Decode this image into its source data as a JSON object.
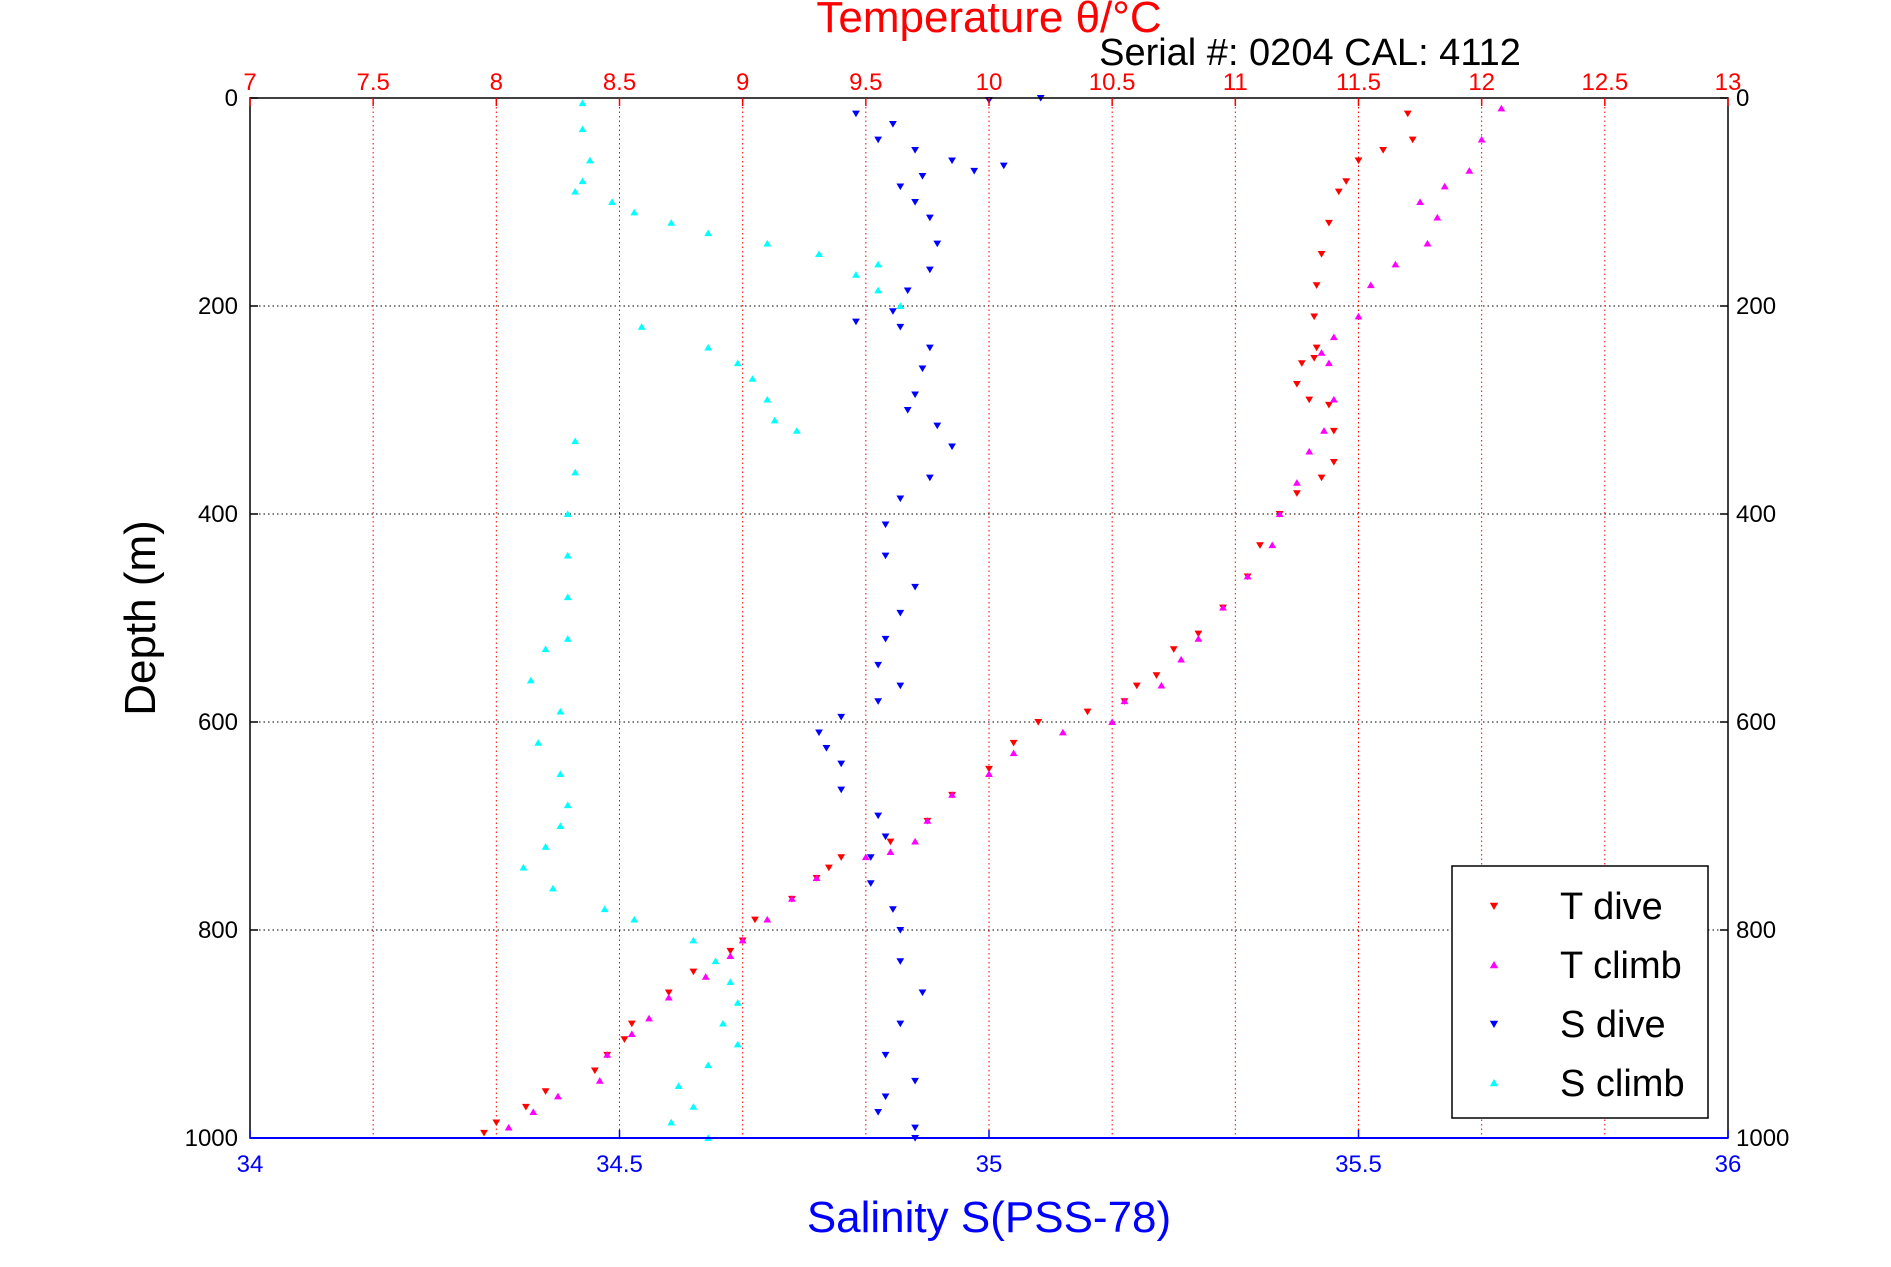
{
  "chart_data": {
    "type": "scatter",
    "title": "Temperature θ/°C",
    "subtitle": "Serial #: 0204  CAL: 4112",
    "ylabel": "Depth (m)",
    "xlabel": "Salinity S(PSS-78)",
    "y_axis": {
      "range": [
        0,
        1000
      ],
      "reversed": true,
      "ticks": [
        0,
        200,
        400,
        600,
        800,
        1000
      ],
      "tick_labels": [
        "0",
        "200",
        "400",
        "600",
        "800",
        "1000"
      ]
    },
    "x_bottom": {
      "label": "Salinity S(PSS-78)",
      "range": [
        34,
        36
      ],
      "ticks": [
        34,
        34.5,
        35,
        35.5,
        36
      ],
      "tick_labels": [
        "34",
        "34.5",
        "35",
        "35.5",
        "36"
      ],
      "color": "#0000ff"
    },
    "x_top": {
      "label": "Temperature θ/°C",
      "range": [
        7,
        13
      ],
      "ticks": [
        7,
        7.5,
        8,
        8.5,
        9,
        9.5,
        10,
        10.5,
        11,
        11.5,
        12,
        12.5,
        13
      ],
      "tick_labels": [
        "7",
        "7.5",
        "8",
        "8.5",
        "9",
        "9.5",
        "10",
        "10.5",
        "11",
        "11.5",
        "12",
        "12.5",
        "13"
      ],
      "color": "#ff0000"
    },
    "grid": true,
    "legend": {
      "position": "bottom-right"
    },
    "series": [
      {
        "name": "T dive",
        "axis": "temperature",
        "color": "#ff0000",
        "marker": "triangle-down",
        "points": [
          [
            11.7,
            15
          ],
          [
            11.72,
            40
          ],
          [
            11.6,
            50
          ],
          [
            11.5,
            60
          ],
          [
            11.45,
            80
          ],
          [
            11.42,
            90
          ],
          [
            11.38,
            120
          ],
          [
            11.35,
            150
          ],
          [
            11.33,
            180
          ],
          [
            11.32,
            210
          ],
          [
            11.33,
            240
          ],
          [
            11.32,
            250
          ],
          [
            11.27,
            255
          ],
          [
            11.25,
            275
          ],
          [
            11.3,
            290
          ],
          [
            11.38,
            295
          ],
          [
            11.4,
            320
          ],
          [
            11.4,
            350
          ],
          [
            11.35,
            365
          ],
          [
            11.25,
            380
          ],
          [
            11.18,
            400
          ],
          [
            11.1,
            430
          ],
          [
            11.05,
            460
          ],
          [
            10.95,
            490
          ],
          [
            10.85,
            515
          ],
          [
            10.75,
            530
          ],
          [
            10.68,
            555
          ],
          [
            10.6,
            565
          ],
          [
            10.55,
            580
          ],
          [
            10.4,
            590
          ],
          [
            10.2,
            600
          ],
          [
            10.1,
            620
          ],
          [
            10.0,
            645
          ],
          [
            9.85,
            670
          ],
          [
            9.75,
            695
          ],
          [
            9.6,
            715
          ],
          [
            9.4,
            730
          ],
          [
            9.35,
            740
          ],
          [
            9.3,
            750
          ],
          [
            9.2,
            770
          ],
          [
            9.05,
            790
          ],
          [
            9.0,
            810
          ],
          [
            8.95,
            820
          ],
          [
            8.8,
            840
          ],
          [
            8.7,
            860
          ],
          [
            8.55,
            890
          ],
          [
            8.52,
            905
          ],
          [
            8.45,
            920
          ],
          [
            8.4,
            935
          ],
          [
            8.2,
            955
          ],
          [
            8.12,
            970
          ],
          [
            8.0,
            985
          ],
          [
            7.95,
            995
          ]
        ]
      },
      {
        "name": "T climb",
        "axis": "temperature",
        "color": "#ff00ff",
        "marker": "triangle-up",
        "points": [
          [
            12.08,
            10
          ],
          [
            12.0,
            40
          ],
          [
            11.95,
            70
          ],
          [
            11.85,
            85
          ],
          [
            11.75,
            100
          ],
          [
            11.82,
            115
          ],
          [
            11.78,
            140
          ],
          [
            11.65,
            160
          ],
          [
            11.55,
            180
          ],
          [
            11.5,
            210
          ],
          [
            11.4,
            230
          ],
          [
            11.35,
            245
          ],
          [
            11.38,
            255
          ],
          [
            11.4,
            290
          ],
          [
            11.36,
            320
          ],
          [
            11.3,
            340
          ],
          [
            11.25,
            370
          ],
          [
            11.18,
            400
          ],
          [
            11.15,
            430
          ],
          [
            11.05,
            460
          ],
          [
            10.95,
            490
          ],
          [
            10.85,
            520
          ],
          [
            10.78,
            540
          ],
          [
            10.7,
            565
          ],
          [
            10.55,
            580
          ],
          [
            10.5,
            600
          ],
          [
            10.3,
            610
          ],
          [
            10.1,
            630
          ],
          [
            10.0,
            650
          ],
          [
            9.85,
            670
          ],
          [
            9.75,
            695
          ],
          [
            9.7,
            715
          ],
          [
            9.6,
            725
          ],
          [
            9.5,
            730
          ],
          [
            9.3,
            750
          ],
          [
            9.2,
            770
          ],
          [
            9.1,
            790
          ],
          [
            9.0,
            810
          ],
          [
            8.95,
            825
          ],
          [
            8.85,
            845
          ],
          [
            8.7,
            865
          ],
          [
            8.62,
            885
          ],
          [
            8.55,
            900
          ],
          [
            8.45,
            920
          ],
          [
            8.42,
            945
          ],
          [
            8.25,
            960
          ],
          [
            8.15,
            975
          ],
          [
            8.05,
            990
          ]
        ]
      },
      {
        "name": "S dive",
        "axis": "salinity",
        "color": "#0000ff",
        "marker": "triangle-down",
        "points": [
          [
            35.0,
            2
          ],
          [
            35.07,
            0
          ],
          [
            34.82,
            15
          ],
          [
            34.87,
            25
          ],
          [
            34.85,
            40
          ],
          [
            34.9,
            50
          ],
          [
            34.95,
            60
          ],
          [
            35.02,
            65
          ],
          [
            34.98,
            70
          ],
          [
            34.91,
            75
          ],
          [
            34.88,
            85
          ],
          [
            34.9,
            100
          ],
          [
            34.92,
            115
          ],
          [
            34.93,
            140
          ],
          [
            34.92,
            165
          ],
          [
            34.89,
            185
          ],
          [
            34.87,
            205
          ],
          [
            34.82,
            215
          ],
          [
            34.88,
            220
          ],
          [
            34.92,
            240
          ],
          [
            34.91,
            260
          ],
          [
            34.9,
            285
          ],
          [
            34.89,
            300
          ],
          [
            34.93,
            315
          ],
          [
            34.95,
            335
          ],
          [
            34.92,
            365
          ],
          [
            34.88,
            385
          ],
          [
            34.86,
            410
          ],
          [
            34.86,
            440
          ],
          [
            34.9,
            470
          ],
          [
            34.88,
            495
          ],
          [
            34.86,
            520
          ],
          [
            34.85,
            545
          ],
          [
            34.88,
            565
          ],
          [
            34.85,
            580
          ],
          [
            34.8,
            595
          ],
          [
            34.77,
            610
          ],
          [
            34.78,
            625
          ],
          [
            34.8,
            640
          ],
          [
            34.8,
            665
          ],
          [
            34.85,
            690
          ],
          [
            34.86,
            710
          ],
          [
            34.84,
            730
          ],
          [
            34.84,
            755
          ],
          [
            34.87,
            780
          ],
          [
            34.88,
            800
          ],
          [
            34.88,
            830
          ],
          [
            34.91,
            860
          ],
          [
            34.88,
            890
          ],
          [
            34.86,
            920
          ],
          [
            34.9,
            945
          ],
          [
            34.86,
            960
          ],
          [
            34.85,
            975
          ],
          [
            34.9,
            990
          ],
          [
            34.9,
            1000
          ]
        ]
      },
      {
        "name": "S climb",
        "axis": "salinity",
        "color": "#00ffff",
        "marker": "triangle-up",
        "points": [
          [
            34.45,
            5
          ],
          [
            34.45,
            30
          ],
          [
            34.46,
            60
          ],
          [
            34.45,
            80
          ],
          [
            34.44,
            90
          ],
          [
            34.49,
            100
          ],
          [
            34.52,
            110
          ],
          [
            34.57,
            120
          ],
          [
            34.62,
            130
          ],
          [
            34.7,
            140
          ],
          [
            34.77,
            150
          ],
          [
            34.85,
            160
          ],
          [
            34.82,
            170
          ],
          [
            34.85,
            185
          ],
          [
            34.88,
            200
          ],
          [
            34.53,
            220
          ],
          [
            34.62,
            240
          ],
          [
            34.66,
            255
          ],
          [
            34.68,
            270
          ],
          [
            34.7,
            290
          ],
          [
            34.71,
            310
          ],
          [
            34.74,
            320
          ],
          [
            34.44,
            330
          ],
          [
            34.44,
            360
          ],
          [
            34.43,
            400
          ],
          [
            34.43,
            440
          ],
          [
            34.43,
            480
          ],
          [
            34.43,
            520
          ],
          [
            34.4,
            530
          ],
          [
            34.38,
            560
          ],
          [
            34.42,
            590
          ],
          [
            34.39,
            620
          ],
          [
            34.42,
            650
          ],
          [
            34.43,
            680
          ],
          [
            34.42,
            700
          ],
          [
            34.4,
            720
          ],
          [
            34.37,
            740
          ],
          [
            34.41,
            760
          ],
          [
            34.48,
            780
          ],
          [
            34.52,
            790
          ],
          [
            34.6,
            810
          ],
          [
            34.63,
            830
          ],
          [
            34.65,
            850
          ],
          [
            34.66,
            870
          ],
          [
            34.64,
            890
          ],
          [
            34.66,
            910
          ],
          [
            34.62,
            930
          ],
          [
            34.58,
            950
          ],
          [
            34.6,
            970
          ],
          [
            34.57,
            985
          ],
          [
            34.62,
            1000
          ]
        ]
      }
    ]
  }
}
